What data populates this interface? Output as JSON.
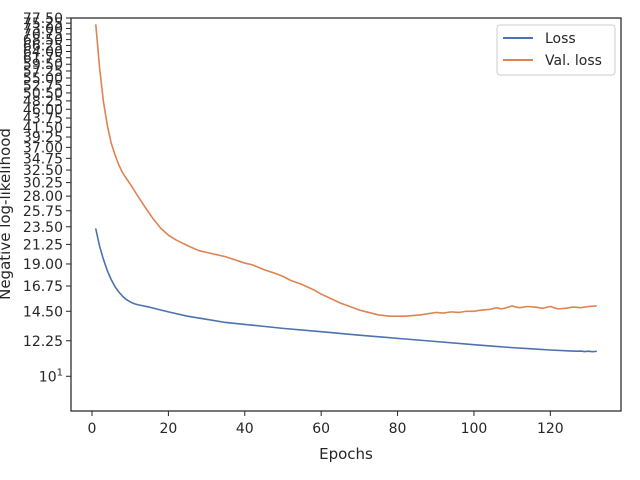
{
  "chart_data": {
    "type": "line",
    "xlabel": "Epochs",
    "ylabel": "Negative log-likelihood",
    "yscale": "log",
    "xlim": [
      -5.5,
      138.5
    ],
    "ylim": [
      8.2,
      77.5
    ],
    "xticks": [
      0,
      20,
      40,
      60,
      80,
      100,
      120
    ],
    "xtick_labels": [
      "0",
      "20",
      "40",
      "60",
      "80",
      "100",
      "120"
    ],
    "yticks": [
      10,
      12.25,
      14.5,
      16.75,
      19.0,
      21.25,
      23.5,
      25.75,
      28.0,
      30.25,
      32.5,
      34.75,
      37.0,
      39.25,
      41.5,
      43.75,
      46.0,
      48.25,
      50.5,
      52.75,
      55.0,
      57.25,
      59.5,
      61.75,
      64.0,
      66.25,
      68.5,
      70.75,
      73.0,
      75.25,
      77.5
    ],
    "ytick_labels": [
      "10^1",
      "12.25",
      "14.50",
      "16.75",
      "19.00",
      "21.25",
      "23.50",
      "25.75",
      "28.00",
      "30.25",
      "32.50",
      "34.75",
      "37.00",
      "39.25",
      "41.50",
      "43.75",
      "46.00",
      "48.25",
      "50.50",
      "52.75",
      "55.00",
      "57.25",
      "59.50",
      "61.75",
      "64.00",
      "66.25",
      "68.50",
      "70.75",
      "73.00",
      "75.25",
      "77.50"
    ],
    "grid": false,
    "legend_position": "top-right",
    "series": [
      {
        "name": "Loss",
        "color": "#4c72b0",
        "x": [
          1,
          2,
          3,
          4,
          5,
          6,
          7,
          8,
          9,
          10,
          11,
          12,
          15,
          20,
          25,
          30,
          35,
          40,
          45,
          50,
          60,
          70,
          80,
          90,
          100,
          105,
          110,
          115,
          120,
          125,
          127,
          128,
          129,
          130,
          131,
          132
        ],
        "y": [
          23.2,
          21.0,
          19.5,
          18.3,
          17.4,
          16.7,
          16.2,
          15.8,
          15.5,
          15.3,
          15.15,
          15.05,
          14.85,
          14.45,
          14.1,
          13.85,
          13.6,
          13.45,
          13.3,
          13.15,
          12.9,
          12.65,
          12.42,
          12.2,
          11.98,
          11.88,
          11.78,
          11.7,
          11.62,
          11.56,
          11.54,
          11.55,
          11.52,
          11.54,
          11.51,
          11.53
        ]
      },
      {
        "name": "Val. loss",
        "color": "#dd8452",
        "x": [
          1,
          2,
          3,
          4,
          5,
          6,
          7,
          8,
          10,
          12,
          14,
          16,
          18,
          20,
          22,
          25,
          28,
          30,
          35,
          40,
          42,
          45,
          48,
          50,
          52,
          55,
          58,
          60,
          65,
          70,
          75,
          78,
          80,
          82,
          84,
          86,
          88,
          90,
          92,
          94,
          96,
          98,
          100,
          102,
          104,
          106,
          107,
          108,
          110,
          111,
          112,
          114,
          116,
          118,
          120,
          121,
          122,
          124,
          126,
          128,
          130,
          132
        ],
        "y": [
          74.5,
          58.0,
          48.0,
          42.0,
          38.0,
          35.5,
          33.5,
          32.0,
          30.0,
          28.0,
          26.2,
          24.6,
          23.3,
          22.4,
          21.8,
          21.1,
          20.5,
          20.3,
          19.8,
          19.1,
          18.9,
          18.4,
          18.0,
          17.7,
          17.3,
          16.9,
          16.4,
          16.0,
          15.2,
          14.6,
          14.2,
          14.1,
          14.1,
          14.1,
          14.15,
          14.2,
          14.3,
          14.4,
          14.35,
          14.45,
          14.4,
          14.5,
          14.5,
          14.6,
          14.65,
          14.8,
          14.7,
          14.75,
          14.95,
          14.85,
          14.8,
          14.9,
          14.85,
          14.75,
          14.9,
          14.8,
          14.7,
          14.75,
          14.85,
          14.8,
          14.9,
          14.95
        ]
      }
    ]
  }
}
